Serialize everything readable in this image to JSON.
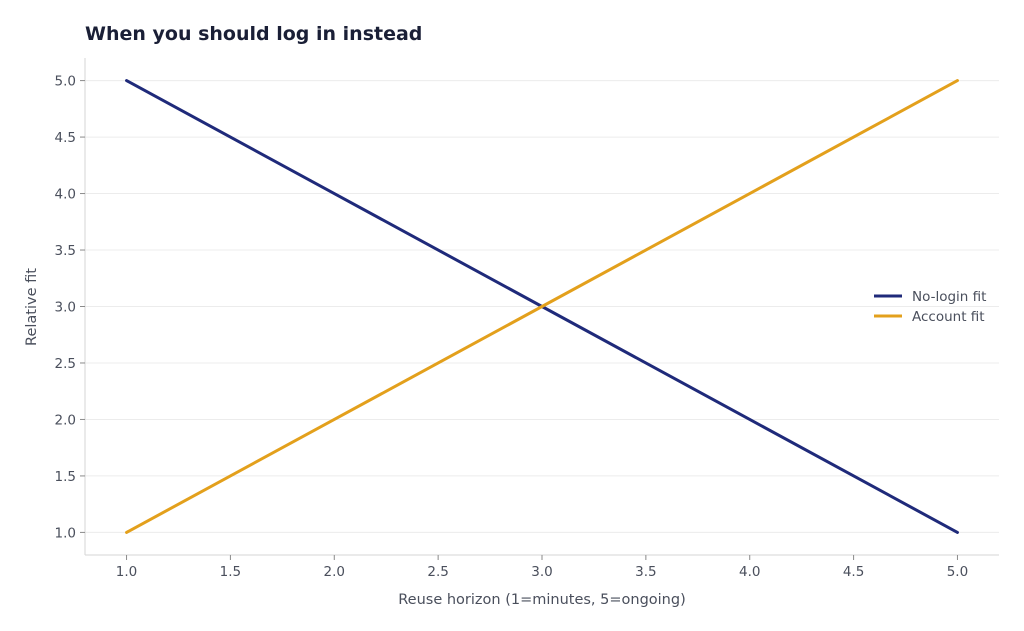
{
  "chart_data": {
    "type": "line",
    "title": "When you should log in instead",
    "xlabel": "Reuse horizon (1=minutes, 5=ongoing)",
    "ylabel": "Relative fit",
    "xlim": [
      0.8,
      5.2
    ],
    "ylim": [
      0.8,
      5.2
    ],
    "x_ticks": [
      1.0,
      1.5,
      2.0,
      2.5,
      3.0,
      3.5,
      4.0,
      4.5,
      5.0
    ],
    "y_ticks": [
      1.0,
      1.5,
      2.0,
      2.5,
      3.0,
      3.5,
      4.0,
      4.5,
      5.0
    ],
    "grid": "horizontal",
    "legend_position": "center-right",
    "x": [
      1,
      2,
      3,
      4,
      5
    ],
    "series": [
      {
        "name": "No-login fit",
        "values": [
          5,
          4,
          3,
          2,
          1
        ],
        "color": "#1f2a7a"
      },
      {
        "name": "Account fit",
        "values": [
          1,
          2,
          3,
          4,
          5
        ],
        "color": "#e3a01c"
      }
    ]
  }
}
